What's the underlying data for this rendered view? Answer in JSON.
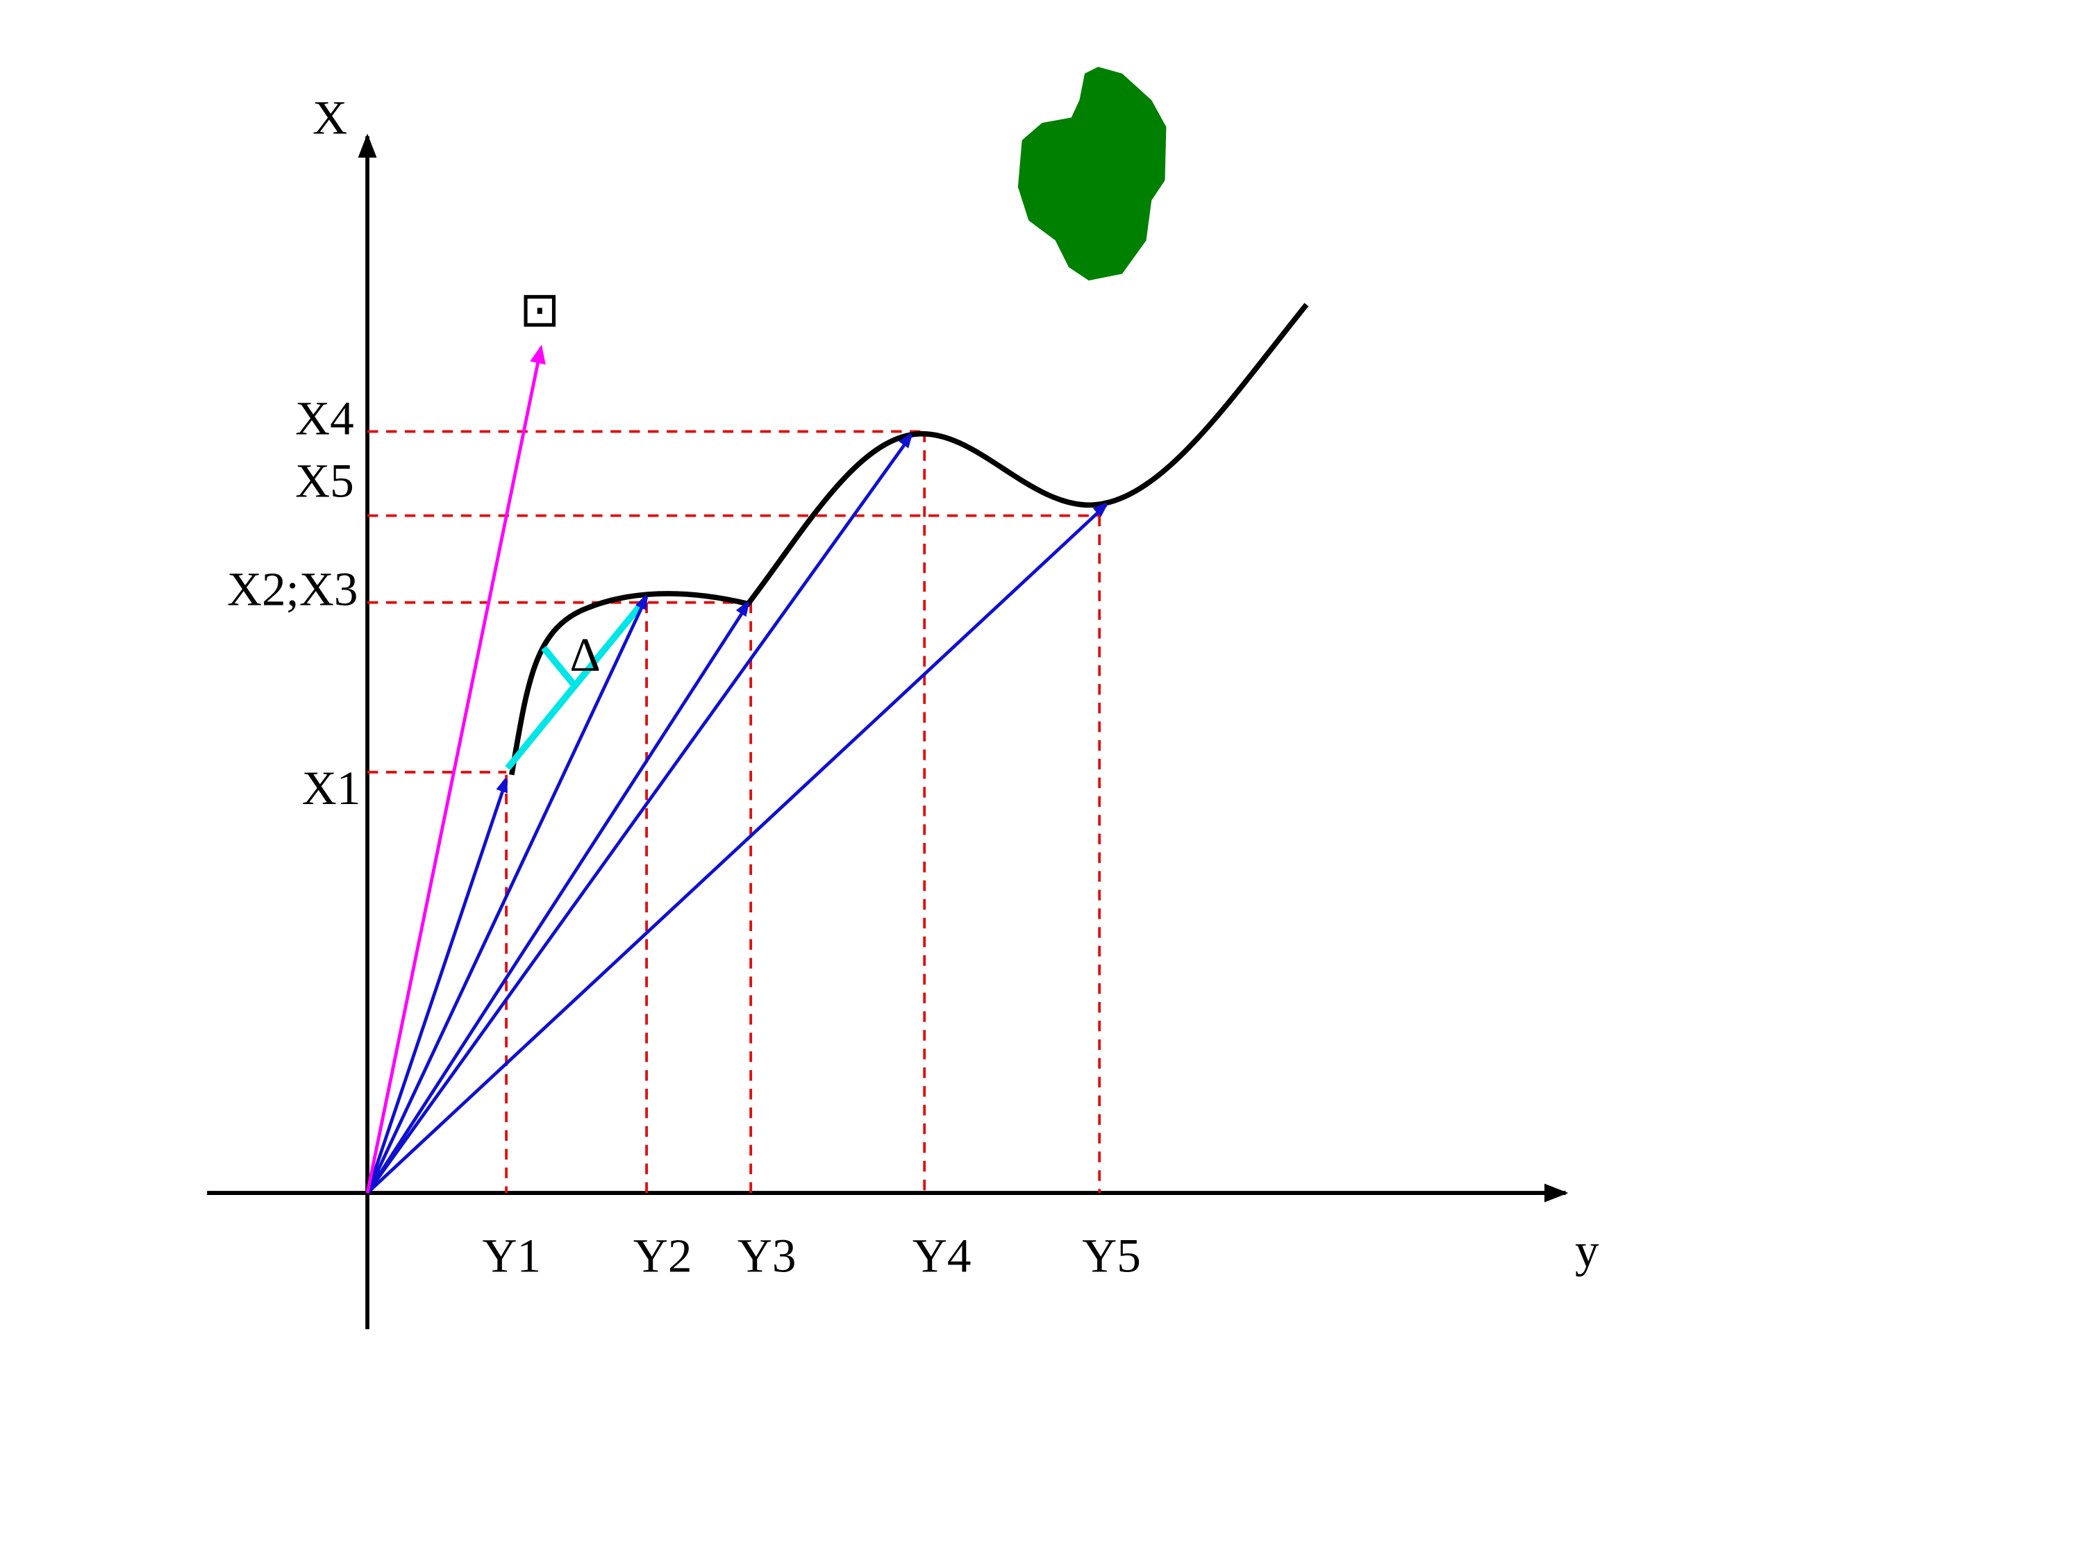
{
  "axes": {
    "vertical": "X",
    "horizontal": "y"
  },
  "x_labels": [
    "X4",
    "X5",
    "X2;X3",
    "X1"
  ],
  "y_labels": [
    "Y1",
    "Y2",
    "Y3",
    "Y4",
    "Y5"
  ],
  "delta": "Δ",
  "symbol": "⊡"
}
